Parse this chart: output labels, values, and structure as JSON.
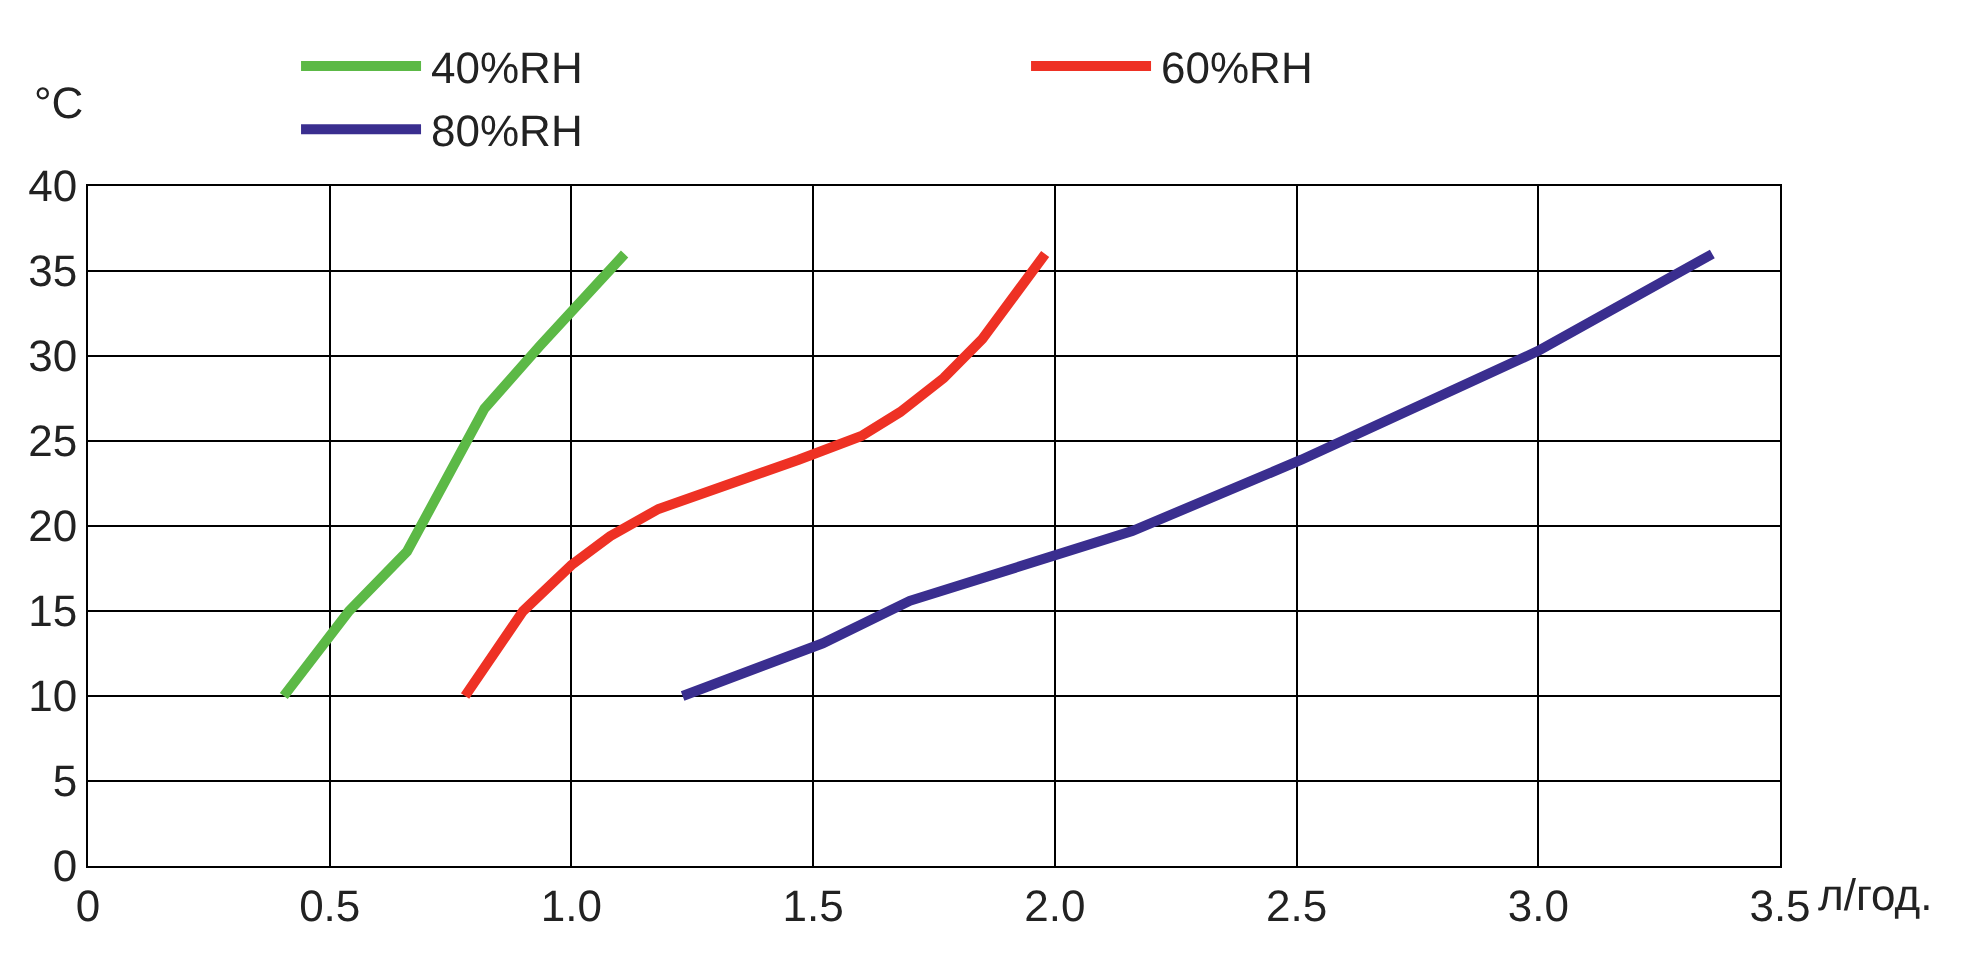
{
  "chart_data": {
    "type": "line",
    "xlabel": "л/год.",
    "ylabel": "°C",
    "xlim": [
      0,
      3.5
    ],
    "ylim": [
      0,
      40
    ],
    "xticks": [
      {
        "value": 0,
        "label": "0"
      },
      {
        "value": 0.5,
        "label": "0.5"
      },
      {
        "value": 1,
        "label": "1.0"
      },
      {
        "value": 1.5,
        "label": "1.5"
      },
      {
        "value": 2,
        "label": "2.0"
      },
      {
        "value": 2.5,
        "label": "2.5"
      },
      {
        "value": 3,
        "label": "3.0"
      },
      {
        "value": 3.5,
        "label": "3.5"
      }
    ],
    "yticks": [
      0,
      5,
      10,
      15,
      20,
      25,
      30,
      35,
      40
    ],
    "grid": true,
    "legend": "top",
    "marker": "none",
    "line_style": "solid",
    "series": [
      {
        "name": "40%RH",
        "color": "#5cb946",
        "x": [
          0.405,
          0.54,
          0.66,
          0.82,
          0.935,
          1.11
        ],
        "values": [
          10,
          15,
          18.5,
          26.9,
          30.6,
          36
        ]
      },
      {
        "name": "60%RH",
        "color": "#ee3124",
        "x": [
          0.78,
          0.9,
          1.0,
          1.08,
          1.18,
          1.47,
          1.6,
          1.68,
          1.77,
          1.85,
          1.98
        ],
        "values": [
          10,
          15,
          17.7,
          19.4,
          21,
          23.9,
          25.3,
          26.7,
          28.7,
          31,
          36
        ]
      },
      {
        "name": "80%RH",
        "color": "#3a2e8f",
        "x": [
          1.23,
          1.52,
          1.7,
          2.16,
          2.51,
          3.0,
          3.36
        ],
        "values": [
          10,
          13.1,
          15.6,
          19.7,
          23.9,
          30.3,
          36
        ]
      }
    ]
  }
}
